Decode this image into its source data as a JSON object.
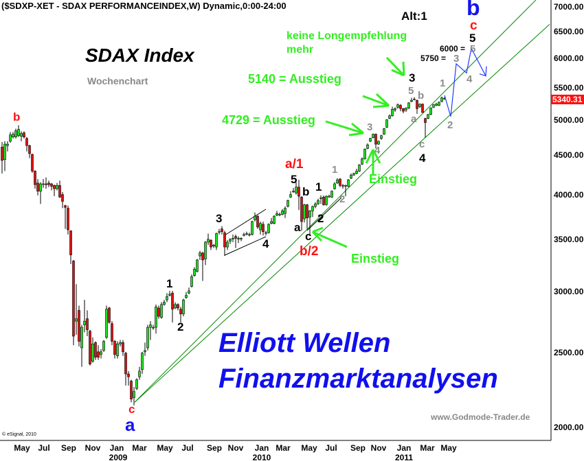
{
  "header": {
    "title": "($SDXP-XET - SDAX PERFORMANCEINDEX,W) Dynamic,0:00-24:00"
  },
  "chart_data": {
    "type": "candlestick",
    "title": "SDAX Index",
    "subtitle": "Wochenchart",
    "y_scale": "log",
    "ylim": [
      1950,
      7150
    ],
    "y_ticks": [
      "7000.00",
      "6500.00",
      "6000.00",
      "5500.00",
      "5000.00",
      "4500.00",
      "4000.00",
      "3500.00",
      "3000.00",
      "2500.00",
      "2000.00"
    ],
    "last_price": "5340.31",
    "x_ticks": [
      "May",
      "Jul",
      "Sep",
      "Nov",
      "Jan",
      "Mar",
      "May",
      "Jul",
      "Sep",
      "Nov",
      "Jan",
      "Mar",
      "May",
      "Jul",
      "Sep",
      "Nov",
      "Jan",
      "Mar",
      "May"
    ],
    "x_years": [
      "2009",
      "2010",
      "2011"
    ],
    "grid": false,
    "colors": {
      "up": "#22dd22",
      "down": "#dd1111",
      "trend": "#008800",
      "projection": "#1e3cff"
    },
    "ohlc": [
      [
        4620,
        4690,
        4270,
        4440
      ],
      [
        4450,
        4700,
        4300,
        4660
      ],
      [
        4640,
        4700,
        4560,
        4660
      ],
      [
        4700,
        4830,
        4680,
        4790
      ],
      [
        4760,
        4830,
        4740,
        4800
      ],
      [
        4760,
        4880,
        4740,
        4850
      ],
      [
        4780,
        4930,
        4760,
        4870
      ],
      [
        4770,
        4840,
        4700,
        4810
      ],
      [
        4820,
        4840,
        4740,
        4760
      ],
      [
        4740,
        4760,
        4560,
        4640
      ],
      [
        4640,
        4650,
        4470,
        4530
      ],
      [
        4520,
        4530,
        4280,
        4300
      ],
      [
        4300,
        4310,
        4080,
        4130
      ],
      [
        4150,
        4200,
        4000,
        4050
      ],
      [
        4050,
        4160,
        3900,
        4140
      ],
      [
        4140,
        4200,
        4090,
        4140
      ],
      [
        4140,
        4220,
        4080,
        4130
      ],
      [
        4150,
        4180,
        4100,
        4130
      ],
      [
        4140,
        4150,
        4060,
        4110
      ],
      [
        4120,
        4130,
        3990,
        4080
      ],
      [
        4080,
        4150,
        4060,
        4120
      ],
      [
        4120,
        4180,
        3970,
        3980
      ],
      [
        4010,
        4040,
        3850,
        3930
      ],
      [
        3880,
        3890,
        3620,
        3860
      ],
      [
        3850,
        3880,
        3560,
        3610
      ],
      [
        3600,
        3600,
        3260,
        3350
      ],
      [
        3290,
        3300,
        2560,
        2630
      ],
      [
        2750,
        3070,
        2640,
        2770
      ],
      [
        2840,
        2880,
        2550,
        2590
      ],
      [
        2540,
        2720,
        2400,
        2700
      ],
      [
        2720,
        2930,
        2660,
        2750
      ],
      [
        2770,
        2840,
        2630,
        2680
      ],
      [
        2670,
        2680,
        2410,
        2420
      ],
      [
        2440,
        2620,
        2430,
        2570
      ],
      [
        2580,
        2590,
        2450,
        2470
      ],
      [
        2510,
        2560,
        2450,
        2470
      ],
      [
        2490,
        2530,
        2460,
        2510
      ],
      [
        2520,
        2600,
        2510,
        2590
      ],
      [
        2620,
        2880,
        2610,
        2850
      ],
      [
        2860,
        2870,
        2730,
        2740
      ],
      [
        2730,
        2750,
        2560,
        2590
      ],
      [
        2590,
        2600,
        2460,
        2490
      ],
      [
        2480,
        2590,
        2460,
        2570
      ],
      [
        2570,
        2600,
        2550,
        2580
      ],
      [
        2580,
        2600,
        2480,
        2510
      ],
      [
        2500,
        2510,
        2270,
        2350
      ],
      [
        2350,
        2370,
        2270,
        2330
      ],
      [
        2300,
        2310,
        2160,
        2180
      ],
      [
        2190,
        2260,
        2140,
        2230
      ],
      [
        2250,
        2320,
        2240,
        2310
      ],
      [
        2330,
        2400,
        2310,
        2370
      ],
      [
        2380,
        2510,
        2350,
        2500
      ],
      [
        2510,
        2580,
        2480,
        2520
      ],
      [
        2540,
        2720,
        2520,
        2700
      ],
      [
        2700,
        2750,
        2600,
        2720
      ],
      [
        2700,
        2720,
        2680,
        2700
      ],
      [
        2700,
        2890,
        2650,
        2870
      ],
      [
        2860,
        2880,
        2770,
        2790
      ],
      [
        2780,
        2910,
        2770,
        2890
      ],
      [
        2890,
        2930,
        2880,
        2910
      ],
      [
        2930,
        2990,
        2910,
        2960
      ],
      [
        2970,
        3010,
        2960,
        2980
      ],
      [
        2990,
        3010,
        2740,
        2850
      ],
      [
        2860,
        2910,
        2850,
        2890
      ],
      [
        2890,
        2900,
        2840,
        2860
      ],
      [
        2850,
        2870,
        2740,
        2810
      ],
      [
        2810,
        2940,
        2790,
        2930
      ],
      [
        2950,
        3000,
        2940,
        2970
      ],
      [
        2990,
        3040,
        2980,
        3010
      ],
      [
        3050,
        3160,
        3040,
        3140
      ],
      [
        3150,
        3230,
        3140,
        3210
      ],
      [
        3190,
        3310,
        3180,
        3300
      ],
      [
        3340,
        3390,
        3300,
        3370
      ],
      [
        3370,
        3380,
        3100,
        3300
      ],
      [
        3310,
        3490,
        3250,
        3480
      ],
      [
        3480,
        3570,
        3450,
        3510
      ],
      [
        3500,
        3510,
        3400,
        3430
      ],
      [
        3440,
        3460,
        3420,
        3450
      ],
      [
        3430,
        3580,
        3400,
        3570
      ],
      [
        3590,
        3620,
        3560,
        3590
      ],
      [
        3620,
        3650,
        3560,
        3590
      ],
      [
        3580,
        3600,
        3340,
        3430
      ],
      [
        3430,
        3500,
        3400,
        3480
      ],
      [
        3490,
        3520,
        3460,
        3510
      ],
      [
        3520,
        3560,
        3480,
        3520
      ],
      [
        3540,
        3560,
        3420,
        3520
      ],
      [
        3520,
        3540,
        3470,
        3520
      ],
      [
        3520,
        3530,
        3490,
        3520
      ],
      [
        3550,
        3580,
        3540,
        3560
      ],
      [
        3570,
        3590,
        3550,
        3570
      ],
      [
        3560,
        3580,
        3540,
        3560
      ],
      [
        3560,
        3710,
        3550,
        3700
      ],
      [
        3720,
        3800,
        3700,
        3760
      ],
      [
        3760,
        3770,
        3620,
        3640
      ],
      [
        3610,
        3700,
        3560,
        3680
      ],
      [
        3670,
        3700,
        3550,
        3590
      ],
      [
        3580,
        3600,
        3550,
        3580
      ],
      [
        3580,
        3680,
        3570,
        3670
      ],
      [
        3680,
        3740,
        3670,
        3700
      ],
      [
        3680,
        3770,
        3670,
        3760
      ],
      [
        3770,
        3820,
        3760,
        3790
      ],
      [
        3780,
        3800,
        3760,
        3780
      ],
      [
        3780,
        3840,
        3770,
        3820
      ],
      [
        3790,
        3870,
        3740,
        3850
      ],
      [
        3870,
        3950,
        3860,
        3940
      ],
      [
        3980,
        4050,
        3970,
        4010
      ],
      [
        4050,
        4090,
        4030,
        4050
      ],
      [
        4030,
        4160,
        4010,
        4100
      ],
      [
        4100,
        4190,
        3830,
        3990
      ],
      [
        3980,
        3990,
        3600,
        3700
      ],
      [
        3730,
        3900,
        3690,
        3890
      ],
      [
        3890,
        3900,
        3620,
        3740
      ],
      [
        3750,
        3830,
        3550,
        3820
      ],
      [
        3820,
        3880,
        3750,
        3870
      ],
      [
        3870,
        3920,
        3850,
        3900
      ],
      [
        3900,
        3960,
        3890,
        3940
      ],
      [
        3970,
        4000,
        3900,
        3970
      ],
      [
        3980,
        4000,
        3880,
        3890
      ],
      [
        3890,
        4000,
        3880,
        3990
      ],
      [
        3990,
        4010,
        3970,
        3990
      ],
      [
        3980,
        4060,
        3970,
        4050
      ],
      [
        4080,
        4160,
        4070,
        4140
      ],
      [
        4150,
        4210,
        4140,
        4190
      ],
      [
        4200,
        4210,
        4100,
        4120
      ],
      [
        4120,
        4140,
        4080,
        4120
      ],
      [
        4120,
        4130,
        3990,
        4120
      ],
      [
        4110,
        4200,
        4100,
        4190
      ],
      [
        4210,
        4270,
        4200,
        4250
      ],
      [
        4250,
        4280,
        4240,
        4270
      ],
      [
        4270,
        4330,
        4260,
        4300
      ],
      [
        4300,
        4390,
        4290,
        4380
      ],
      [
        4390,
        4480,
        4380,
        4460
      ],
      [
        4460,
        4600,
        4450,
        4590
      ],
      [
        4600,
        4670,
        4590,
        4650
      ],
      [
        4700,
        4750,
        4690,
        4740
      ],
      [
        4750,
        4810,
        4740,
        4800
      ],
      [
        4800,
        4810,
        4600,
        4660
      ],
      [
        4660,
        4710,
        4650,
        4700
      ],
      [
        4740,
        4790,
        4720,
        4780
      ],
      [
        4800,
        4890,
        4790,
        4880
      ],
      [
        4900,
        5020,
        4890,
        5010
      ],
      [
        5030,
        5090,
        5020,
        5070
      ],
      [
        5070,
        5210,
        5060,
        5170
      ],
      [
        5160,
        5200,
        5130,
        5180
      ],
      [
        5200,
        5260,
        5180,
        5240
      ],
      [
        5230,
        5250,
        5140,
        5180
      ],
      [
        5180,
        5190,
        5110,
        5140
      ],
      [
        5160,
        5200,
        5130,
        5190
      ],
      [
        5190,
        5280,
        5170,
        5270
      ],
      [
        5290,
        5350,
        5280,
        5310
      ],
      [
        5330,
        5360,
        5310,
        5330
      ],
      [
        5310,
        5320,
        5100,
        5180
      ],
      [
        5210,
        5260,
        5190,
        5250
      ],
      [
        5250,
        5260,
        5120,
        5120
      ],
      [
        5030,
        5040,
        4750,
        4970
      ],
      [
        5030,
        5100,
        5020,
        5090
      ],
      [
        5090,
        5200,
        5080,
        5190
      ],
      [
        5200,
        5250,
        5190,
        5240
      ],
      [
        5230,
        5270,
        5220,
        5250
      ],
      [
        5230,
        5290,
        5220,
        5280
      ],
      [
        5290,
        5370,
        5280,
        5350
      ],
      [
        5340,
        5360,
        5320,
        5340.31
      ]
    ],
    "projection": {
      "labels": [
        "1",
        "2",
        "3",
        "4",
        "5"
      ],
      "path": [
        [
          161,
          5390
        ],
        [
          163.25,
          5060
        ],
        [
          165.25,
          5920
        ],
        [
          169,
          5760
        ],
        [
          170.75,
          6200
        ],
        [
          176,
          5710
        ]
      ]
    },
    "trendlines": [
      {
        "from": [
          48.25,
          2160
        ],
        "to": [
          194.25,
          7160
        ]
      },
      {
        "from": [
          48.25,
          2160
        ],
        "to": [
          199.25,
          6660
        ]
      }
    ]
  },
  "annotations": {
    "alt": "Alt:1",
    "no_long": [
      "keine Longempfehlung",
      "mehr"
    ],
    "exit_5140": "5140 = Ausstieg",
    "exit_4729": "4729 = Ausstieg",
    "entry_1": "Einstieg",
    "entry_2": "Einstieg",
    "target_3": "5750 = ",
    "target_5": "6000 =",
    "waves": {
      "b_top_left": "b",
      "c_low": "c",
      "a_low": "a",
      "w1": "1",
      "w2": "2",
      "w3": "3",
      "w4": "4",
      "a1": "a/1",
      "w5": "5",
      "b_mid": "b",
      "w1b": "1",
      "a_mid": "a",
      "c_mid": "c",
      "w2b": "2",
      "b2": "b/2",
      "g1": "1",
      "g2": "2",
      "g3": "3",
      "g4": "4",
      "k3": "3",
      "g5": "5",
      "gb": "b",
      "ga": "a",
      "gc": "c",
      "k4": "4",
      "p1": "1",
      "p2": "2",
      "p3": "3",
      "p4": "4",
      "p5": "5",
      "k5": "5",
      "rc": "c",
      "bb": "b"
    },
    "brand_1": "Elliott Wellen",
    "brand_2": "Finanzmarktanalysen",
    "website": "www.Godmode-Trader.de",
    "copyright": "© eSignal, 2010"
  }
}
